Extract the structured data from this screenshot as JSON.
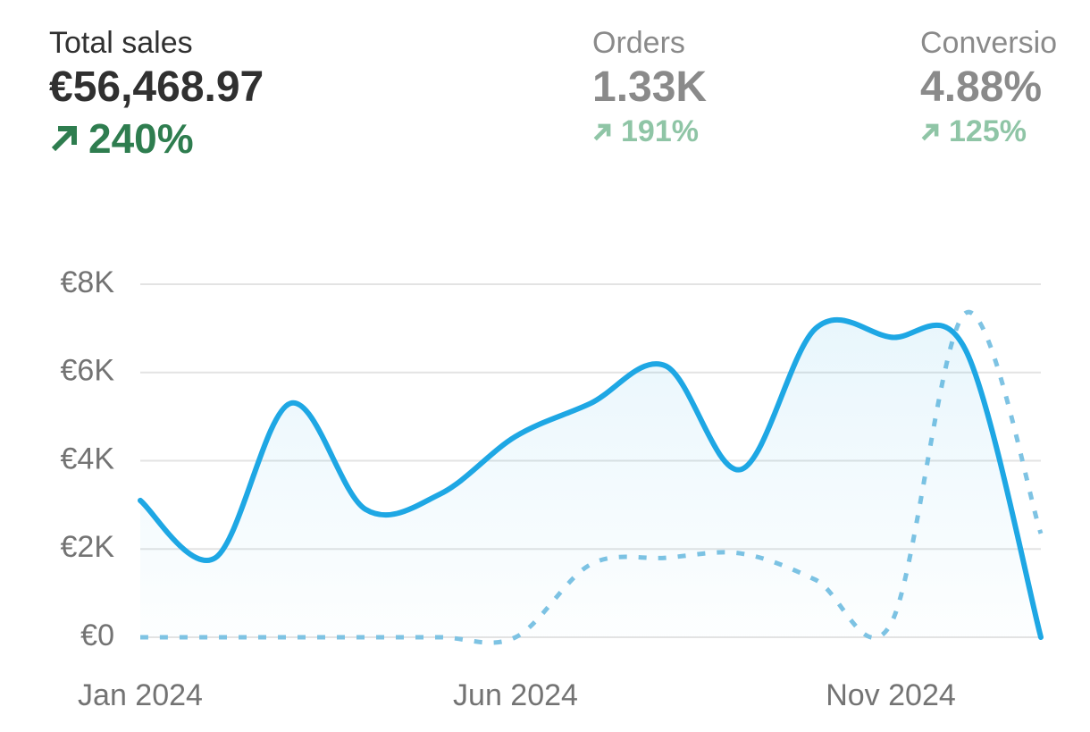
{
  "metrics": [
    {
      "label": "Total sales",
      "value": "€56,468.97",
      "change": "240%"
    },
    {
      "label": "Orders",
      "value": "1.33K",
      "change": "191%"
    },
    {
      "label": "Conversio",
      "value": "4.88%",
      "change": "125%"
    }
  ],
  "chart_data": {
    "type": "line",
    "categories": [
      "Jan 2024",
      null,
      null,
      null,
      null,
      "Jun 2024",
      null,
      null,
      null,
      null,
      "Nov 2024",
      null,
      null
    ],
    "series": [
      {
        "color": "#1ea7e4",
        "values": [
          3100,
          1800,
          5300,
          2900,
          3250,
          4550,
          5300,
          6150,
          3800,
          7000,
          6800,
          6500,
          0
        ]
      },
      {
        "color": "#7ec3e3",
        "values": [
          0,
          0,
          0,
          0,
          0,
          0,
          1650,
          1800,
          1900,
          1300,
          300,
          7350,
          2350
        ]
      }
    ],
    "ylim": [
      0,
      8000
    ],
    "yticks": [
      {
        "value": 0,
        "label": "€0"
      },
      {
        "value": 2000,
        "label": "€2K"
      },
      {
        "value": 4000,
        "label": "€4K"
      },
      {
        "value": 6000,
        "label": "€6K"
      },
      {
        "value": 8000,
        "label": "€8K"
      }
    ],
    "grid": true
  }
}
